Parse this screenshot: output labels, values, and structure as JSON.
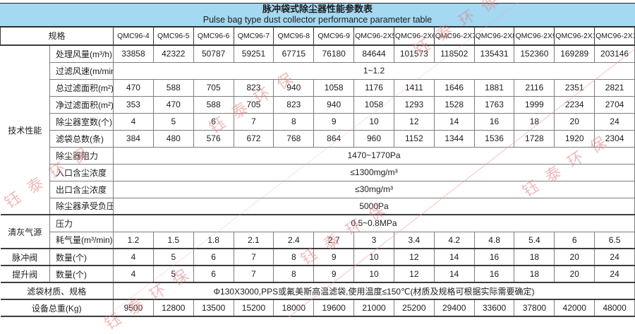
{
  "title": {
    "zh": "脉冲袋式除尘器性能参数表",
    "en": "Pulse bag type dust collector performance parameter table"
  },
  "watermark": "钰泰环保",
  "colors": {
    "header_bg": "#a5d8f1",
    "watermark": "#e28282"
  },
  "table": {
    "spec_header": "规格",
    "models": [
      "QMC96-4",
      "QMC96-5",
      "QMC96-6",
      "QMC96-7",
      "QMC96-8",
      "QMC96-9",
      "QMC96-2X5",
      "QMC96-2X6",
      "QMC96-2X7",
      "QMC96-2X8",
      "QMC96-2X9",
      "QMC96-2X10",
      "QMC96-2X12"
    ],
    "rows": [
      {
        "group": "技术性能",
        "group_span": 10,
        "label": "处理风量(m³/h)",
        "type": "values",
        "section_start": true,
        "values": [
          "33858",
          "42322",
          "50787",
          "59251",
          "67715",
          "76180",
          "84644",
          "101573",
          "118502",
          "135431",
          "152360",
          "169289",
          "203146"
        ]
      },
      {
        "label": "过滤风速(m/min)",
        "type": "span",
        "value": "1~1.2"
      },
      {
        "label": "总过滤面积(m²)",
        "type": "values",
        "values": [
          "470",
          "588",
          "705",
          "823",
          "940",
          "1058",
          "1176",
          "1411",
          "1646",
          "1881",
          "2116",
          "2351",
          "2821"
        ]
      },
      {
        "label": "净过滤面积(m²)",
        "type": "values",
        "values": [
          "353",
          "470",
          "588",
          "705",
          "823",
          "940",
          "1058",
          "1293",
          "1528",
          "1763",
          "1999",
          "2234",
          "2704"
        ]
      },
      {
        "label": "除尘器室数(个)",
        "type": "values",
        "values": [
          "4",
          "5",
          "6",
          "7",
          "8",
          "9",
          "10",
          "12",
          "14",
          "16",
          "18",
          "20",
          "24"
        ]
      },
      {
        "label": "滤袋总数(条)",
        "type": "values",
        "values": [
          "384",
          "480",
          "576",
          "672",
          "768",
          "864",
          "960",
          "1152",
          "1344",
          "1536",
          "1728",
          "1920",
          "2304"
        ]
      },
      {
        "label": "除尘器阻力",
        "type": "span",
        "value": "1470~1770Pa"
      },
      {
        "label": "入口含尘浓度",
        "type": "span",
        "value": "≤1300mg/m³"
      },
      {
        "label": "出口含尘浓度",
        "type": "span",
        "value": "≤30mg/m³"
      },
      {
        "label": "除尘器承受负压",
        "type": "span",
        "value": "5000Pa"
      },
      {
        "group": "清灰气源",
        "group_span": 2,
        "label": "压力",
        "type": "span",
        "value": "0.5~0.8MPa",
        "section_start": true
      },
      {
        "label": "耗气量(m³/min)",
        "type": "values",
        "values": [
          "1.2",
          "1.5",
          "1.8",
          "2.1",
          "2.4",
          "2.7",
          "3",
          "3.4",
          "4.2",
          "4.8",
          "5.4",
          "6",
          "6.5"
        ]
      },
      {
        "group": "脉冲阀",
        "group_span": 1,
        "label": "数量(个)",
        "type": "values",
        "section_start": true,
        "values": [
          "4",
          "5",
          "6",
          "7",
          "8",
          "9",
          "10",
          "12",
          "14",
          "16",
          "18",
          "20",
          "24"
        ]
      },
      {
        "group": "提升阀",
        "group_span": 1,
        "label": "数量(个)",
        "type": "values",
        "section_start": true,
        "values": [
          "4",
          "5",
          "6",
          "7",
          "8",
          "9",
          "10",
          "12",
          "14",
          "16",
          "18",
          "20",
          "24"
        ]
      },
      {
        "full_label": "滤袋材质、规格",
        "type": "span",
        "section_start": true,
        "value": "Φ130X3000,PPS或氟美斯高温滤袋,使用温度≤150℃(材质及规格可根据实际需要确定)"
      },
      {
        "full_label": "设备总重(Kg)",
        "type": "values",
        "section_start": true,
        "values": [
          "9500",
          "12800",
          "13500",
          "15200",
          "18000",
          "19600",
          "21000",
          "25200",
          "29400",
          "33600",
          "37800",
          "42000",
          "48000"
        ]
      }
    ]
  }
}
